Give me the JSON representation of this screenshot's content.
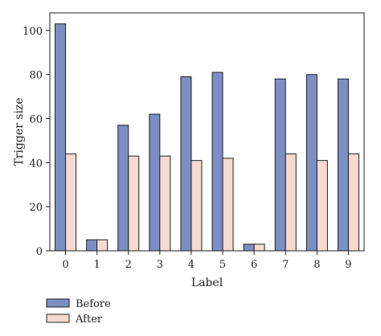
{
  "chart_data": {
    "type": "bar",
    "title": "",
    "xlabel": "Label",
    "ylabel": "Trigger size",
    "categories": [
      "0",
      "1",
      "2",
      "3",
      "4",
      "5",
      "6",
      "7",
      "8",
      "9"
    ],
    "series": [
      {
        "name": "Before",
        "values": [
          103,
          5,
          57,
          62,
          79,
          81,
          3,
          78,
          80,
          78
        ],
        "color": "#7b8fc4"
      },
      {
        "name": "After",
        "values": [
          44,
          5,
          43,
          43,
          41,
          42,
          3,
          44,
          41,
          44
        ],
        "color": "#f6d9cf"
      }
    ],
    "ylim": [
      0,
      108
    ],
    "yticks": [
      0,
      20,
      40,
      60,
      80,
      100
    ],
    "grid": false,
    "legend_position": "bottom-left"
  }
}
